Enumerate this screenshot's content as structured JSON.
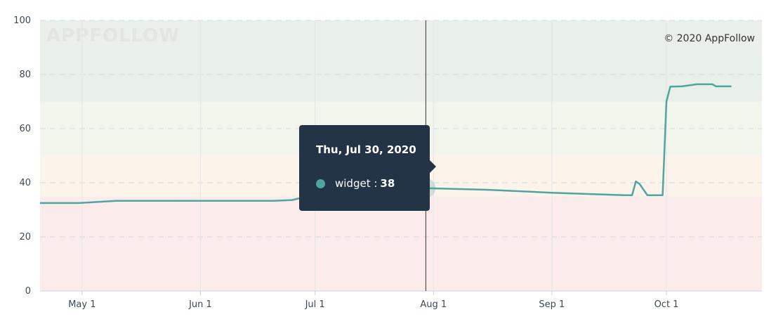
{
  "chart_data": {
    "type": "line",
    "watermark": "APPFOLLOW",
    "credit": "© 2020 AppFollow",
    "ylim": [
      0,
      100
    ],
    "yticks": [
      0,
      20,
      40,
      60,
      80,
      100
    ],
    "xlim": [
      "2020-04-20",
      "2020-10-26"
    ],
    "xticks": [
      {
        "date": "2020-05-01",
        "label": "May 1"
      },
      {
        "date": "2020-06-01",
        "label": "Jun 1"
      },
      {
        "date": "2020-07-01",
        "label": "Jul 1"
      },
      {
        "date": "2020-08-01",
        "label": "Aug 1"
      },
      {
        "date": "2020-09-01",
        "label": "Sep 1"
      },
      {
        "date": "2020-10-01",
        "label": "Oct 1"
      }
    ],
    "grid": true,
    "background_bands": [
      {
        "from": 0,
        "to": 35,
        "color": "#fbeceb"
      },
      {
        "from": 35,
        "to": 50,
        "color": "#fcf3ea"
      },
      {
        "from": 50,
        "to": 70,
        "color": "#f1f5ec"
      },
      {
        "from": 70,
        "to": 100,
        "color": "#e9efe9"
      }
    ],
    "series": [
      {
        "name": "widget",
        "color": "#4fa5a0",
        "points": [
          {
            "x": "2020-04-20",
            "y": 32.5
          },
          {
            "x": "2020-04-30",
            "y": 32.5
          },
          {
            "x": "2020-05-10",
            "y": 33.3
          },
          {
            "x": "2020-06-01",
            "y": 33.3
          },
          {
            "x": "2020-06-20",
            "y": 33.3
          },
          {
            "x": "2020-06-25",
            "y": 33.6
          },
          {
            "x": "2020-06-29",
            "y": 35.0
          },
          {
            "x": "2020-07-02",
            "y": 37.0
          },
          {
            "x": "2020-07-15",
            "y": 38.0
          },
          {
            "x": "2020-07-30",
            "y": 38.0
          },
          {
            "x": "2020-08-15",
            "y": 37.4
          },
          {
            "x": "2020-09-01",
            "y": 36.3
          },
          {
            "x": "2020-09-20",
            "y": 35.4
          },
          {
            "x": "2020-09-22",
            "y": 35.4
          },
          {
            "x": "2020-09-23",
            "y": 40.5
          },
          {
            "x": "2020-09-24",
            "y": 39.5
          },
          {
            "x": "2020-09-26",
            "y": 35.4
          },
          {
            "x": "2020-09-30",
            "y": 35.4
          },
          {
            "x": "2020-10-01",
            "y": 70.0
          },
          {
            "x": "2020-10-02",
            "y": 75.5
          },
          {
            "x": "2020-10-05",
            "y": 75.6
          },
          {
            "x": "2020-10-09",
            "y": 76.4
          },
          {
            "x": "2020-10-13",
            "y": 76.4
          },
          {
            "x": "2020-10-14",
            "y": 75.6
          },
          {
            "x": "2020-10-18",
            "y": 75.6
          }
        ]
      }
    ],
    "tooltip": {
      "title": "Thu, Jul 30, 2020",
      "series_label": "widget :",
      "value": "38",
      "x": "2020-07-30",
      "y": 38
    }
  }
}
